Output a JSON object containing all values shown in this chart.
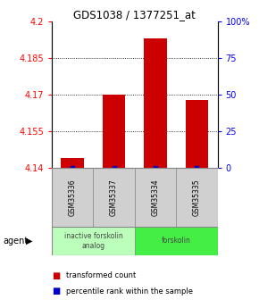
{
  "title": "GDS1038 / 1377251_at",
  "samples": [
    "GSM35336",
    "GSM35337",
    "GSM35334",
    "GSM35335"
  ],
  "bar_values": [
    4.144,
    4.17,
    4.193,
    4.168
  ],
  "ylim_left": [
    4.14,
    4.2
  ],
  "yticks_left": [
    4.14,
    4.155,
    4.17,
    4.185,
    4.2
  ],
  "yticklabels_left": [
    "4.14",
    "4.155",
    "4.17",
    "4.185",
    "4.2"
  ],
  "ylim_right": [
    0,
    100
  ],
  "yticks_right": [
    0,
    25,
    50,
    75,
    100
  ],
  "yticklabels_right": [
    "0",
    "25",
    "50",
    "75",
    "100%"
  ],
  "bar_color": "#cc0000",
  "dot_color": "#0000cc",
  "gridlines": [
    4.155,
    4.17,
    4.185
  ],
  "agent_groups": [
    {
      "label": "inactive forskolin\nanalog",
      "color": "#bbffbb",
      "span": [
        0,
        2
      ]
    },
    {
      "label": "forskolin",
      "color": "#44ee44",
      "span": [
        2,
        4
      ]
    }
  ],
  "legend_items": [
    {
      "color": "#cc0000",
      "label": "transformed count"
    },
    {
      "color": "#0000cc",
      "label": "percentile rank within the sample"
    }
  ],
  "background_color": "#ffffff",
  "bar_width": 0.55,
  "base_value": 4.14,
  "sample_box_color": "#d0d0d0",
  "agent_label_color": "#444444"
}
